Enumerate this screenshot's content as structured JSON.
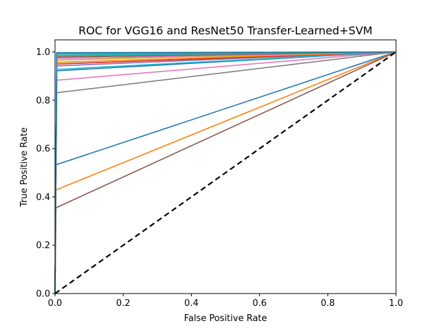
{
  "chart_data": {
    "type": "line",
    "title": "ROC for VGG16 and ResNet50 Transfer-Learned+SVM",
    "xlabel": "False Positive Rate",
    "ylabel": "True Positive Rate",
    "xlim": [
      0.0,
      1.0
    ],
    "ylim": [
      0.0,
      1.05
    ],
    "xticks": [
      "0.0",
      "0.2",
      "0.4",
      "0.6",
      "0.8",
      "1.0"
    ],
    "yticks": [
      "0.0",
      "0.2",
      "0.4",
      "0.6",
      "0.8",
      "1.0"
    ],
    "grid": false,
    "series": [
      {
        "color": "#1f77b4",
        "x": [
          0,
          0.003,
          1
        ],
        "y": [
          0,
          0.533,
          1
        ]
      },
      {
        "color": "#ff7f0e",
        "x": [
          0,
          0.003,
          1
        ],
        "y": [
          0,
          0.429,
          1
        ]
      },
      {
        "color": "#8c564b",
        "x": [
          0,
          0.003,
          1
        ],
        "y": [
          0,
          0.355,
          1
        ]
      },
      {
        "color": "#7f7f7f",
        "x": [
          0,
          0.005,
          1
        ],
        "y": [
          0,
          0.831,
          1
        ]
      },
      {
        "color": "#e377c2",
        "x": [
          0,
          0.005,
          1
        ],
        "y": [
          0,
          0.883,
          1
        ]
      },
      {
        "color": "#1f77b4",
        "x": [
          0,
          0.005,
          1
        ],
        "y": [
          0,
          0.922,
          1
        ]
      },
      {
        "color": "#17becf",
        "x": [
          0,
          0.005,
          1
        ],
        "y": [
          0,
          0.928,
          1
        ]
      },
      {
        "color": "#9467bd",
        "x": [
          0,
          0.005,
          1
        ],
        "y": [
          0,
          0.942,
          1
        ]
      },
      {
        "color": "#d62728",
        "x": [
          0,
          0.005,
          1
        ],
        "y": [
          0,
          0.95,
          1
        ]
      },
      {
        "color": "#ff7f0e",
        "x": [
          0,
          0.005,
          1
        ],
        "y": [
          0,
          0.957,
          1
        ]
      },
      {
        "color": "#bcbd22",
        "x": [
          0,
          0.005,
          1
        ],
        "y": [
          0,
          0.966,
          1
        ]
      },
      {
        "color": "#e377c2",
        "x": [
          0,
          0.005,
          1
        ],
        "y": [
          0,
          0.972,
          1
        ]
      },
      {
        "color": "#8c564b",
        "x": [
          0,
          0.005,
          1
        ],
        "y": [
          0,
          0.978,
          1
        ]
      },
      {
        "color": "#7f7f7f",
        "x": [
          0,
          0.005,
          1
        ],
        "y": [
          0,
          0.983,
          1
        ]
      },
      {
        "color": "#17becf",
        "x": [
          0,
          0.005,
          1
        ],
        "y": [
          0,
          0.987,
          1
        ]
      },
      {
        "color": "#2ca02c",
        "x": [
          0,
          0.005,
          1
        ],
        "y": [
          0,
          0.993,
          1
        ]
      },
      {
        "color": "#1f77b4",
        "x": [
          0,
          0.005,
          1
        ],
        "y": [
          0,
          0.997,
          1
        ]
      }
    ],
    "diagonal": {
      "color": "#000000",
      "style": "dashed",
      "x": [
        0,
        1
      ],
      "y": [
        0,
        1
      ]
    }
  }
}
